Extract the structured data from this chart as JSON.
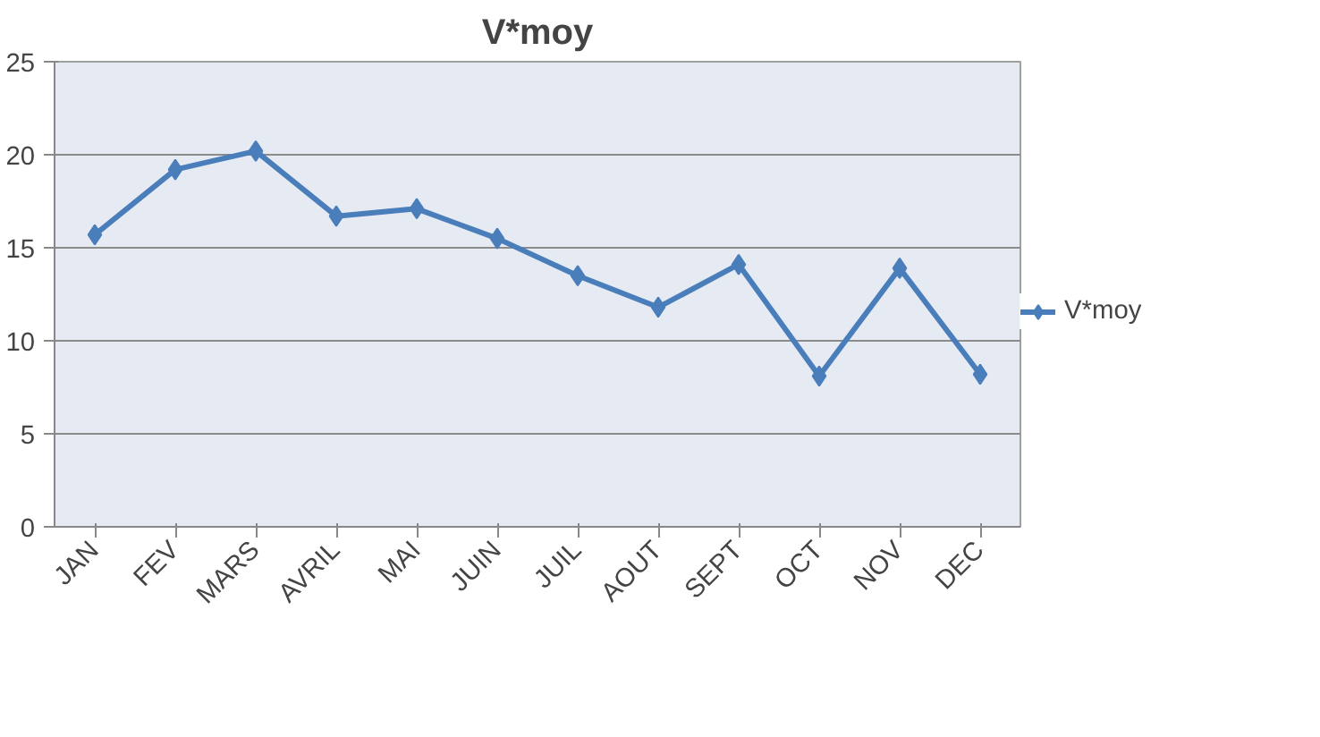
{
  "chart_data": {
    "type": "line",
    "title": "V*moy",
    "categories": [
      "JAN",
      "FEV",
      "MARS",
      "AVRIL",
      "MAI",
      "JUIN",
      "JUIL",
      "AOUT",
      "SEPT",
      "OCT",
      "NOV",
      "DEC"
    ],
    "series": [
      {
        "name": "V*moy",
        "color": "#4a7ebb",
        "values": [
          15.7,
          19.2,
          20.2,
          16.7,
          17.1,
          15.5,
          13.5,
          11.8,
          14.1,
          8.1,
          13.9,
          8.2
        ]
      }
    ],
    "ylim": [
      0,
      25
    ],
    "yticks": [
      0,
      5,
      10,
      15,
      20,
      25
    ],
    "grid": "y",
    "legend": "right",
    "marker": "diamond",
    "line_style": "solid"
  }
}
